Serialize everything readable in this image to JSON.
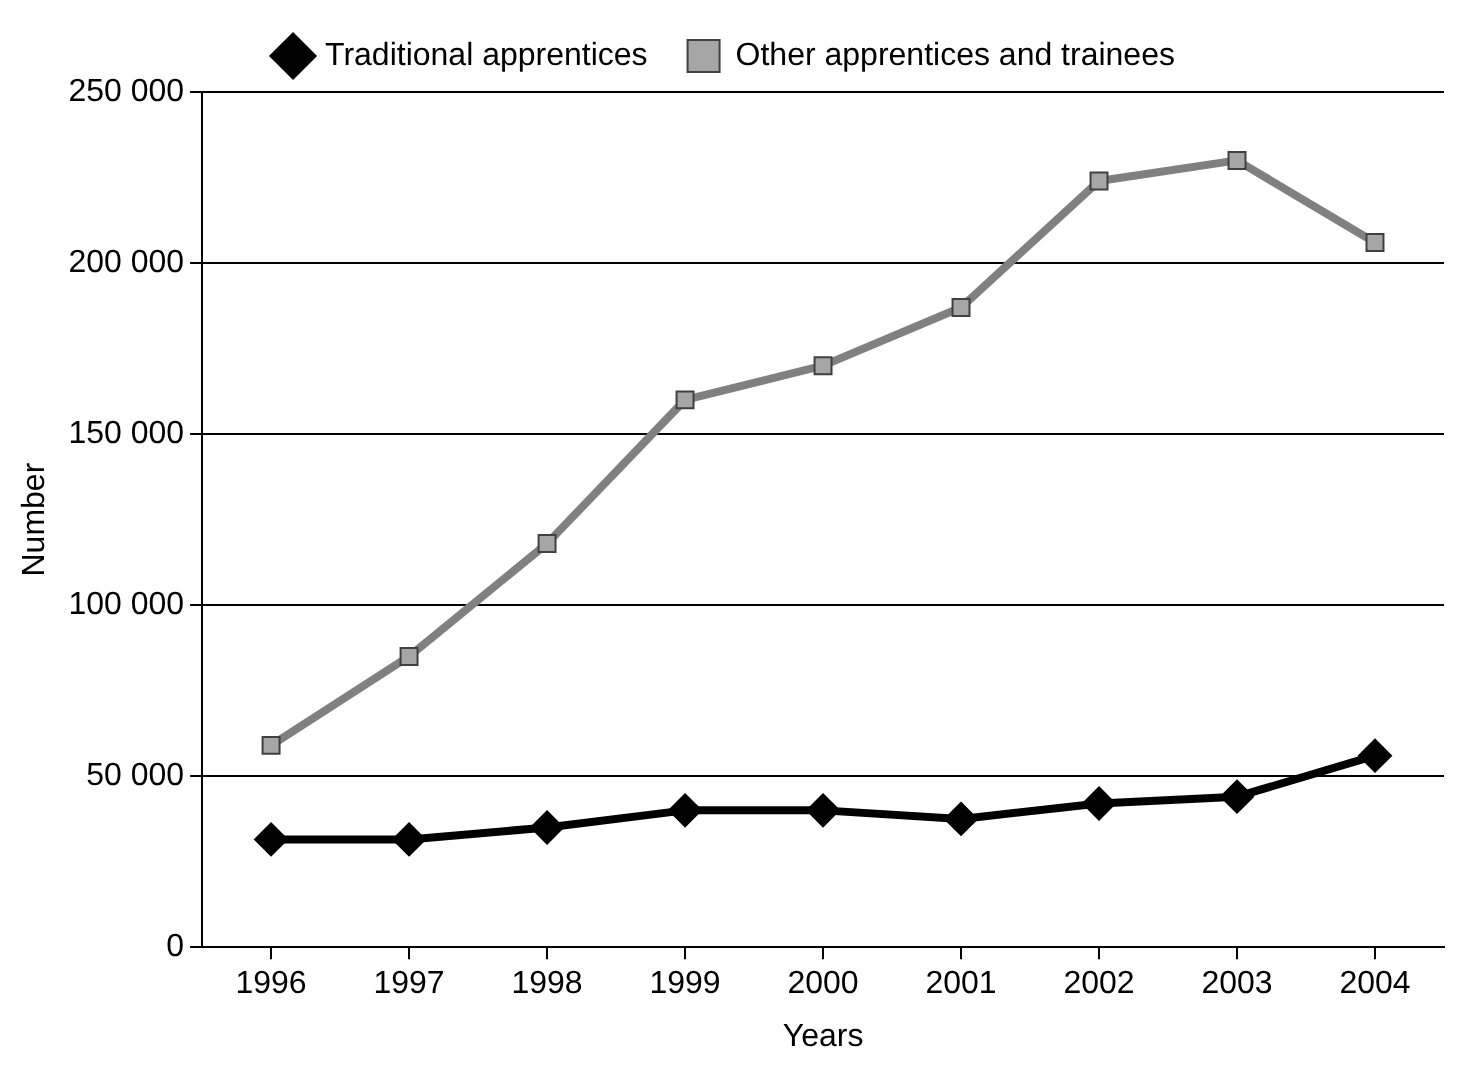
{
  "chart_data": {
    "type": "line",
    "xlabel": "Years",
    "ylabel": "Number",
    "categories": [
      "1996",
      "1997",
      "1998",
      "1999",
      "2000",
      "2001",
      "2002",
      "2003",
      "2004"
    ],
    "series": [
      {
        "name": "Traditional apprentices",
        "color": "#000000",
        "marker": "diamond",
        "values": [
          31500,
          31500,
          35000,
          40000,
          40000,
          37500,
          42000,
          44000,
          56000
        ]
      },
      {
        "name": "Other apprentices and trainees",
        "color": "#808080",
        "marker": "square",
        "values": [
          59000,
          85000,
          118000,
          160000,
          170000,
          187000,
          224000,
          230000,
          206000
        ]
      }
    ],
    "ylim": [
      0,
      250000
    ],
    "yticks": [
      0,
      {
        "value": 50000,
        "label": "50 000"
      },
      {
        "value": 100000,
        "label": "100 000"
      },
      {
        "value": 150000,
        "label": "150 000"
      },
      {
        "value": 200000,
        "label": "200 000"
      },
      {
        "value": 250000,
        "label": "250 000"
      }
    ],
    "grid": "y",
    "legend": "top",
    "line_style": "solid"
  }
}
